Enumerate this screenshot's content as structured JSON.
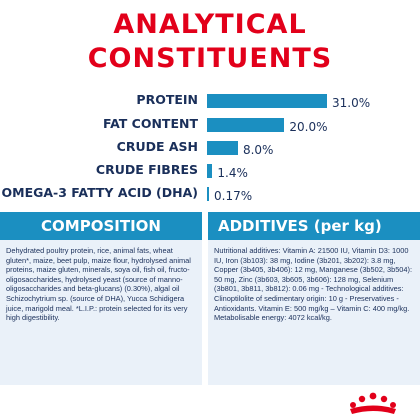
{
  "title": {
    "line1": "ANALYTICAL",
    "line2": "CONSTITUENTS"
  },
  "chart_data": {
    "type": "bar",
    "orientation": "horizontal",
    "categories": [
      "PROTEIN",
      "FAT CONTENT",
      "CRUDE ASH",
      "CRUDE FIBRES",
      "OMEGA-3 FATTY ACID (DHA)"
    ],
    "values": [
      31.0,
      20.0,
      8.0,
      1.4,
      0.17
    ],
    "value_labels": [
      "31.0%",
      "20.0%",
      "8.0%",
      "1.4%",
      "0.17%"
    ],
    "xlim": [
      0,
      31.0
    ],
    "color": "#1b8fc1"
  },
  "composition": {
    "heading": "COMPOSITION",
    "text": "Dehydrated poultry protein, rice, animal fats, wheat gluten*, maize, beet pulp, maize flour, hydrolysed animal proteins, maize gluten, minerals, soya oil, fish oil, fructo-oligosaccharides, hydrolysed yeast (source of manno-oligosaccharides and beta-glucans) (0.30%), algal oil Schizochytrium sp. (source of DHA), Yucca Schidigera juice, marigold meal. *L.I.P.: protein selected for its very high digestibility."
  },
  "additives": {
    "heading": "ADDITIVES (per kg)",
    "text": "Nutritional additives: Vitamin A: 21500 IU, Vitamin D3: 1000 IU, Iron (3b103): 38 mg, Iodine (3b201, 3b202): 3.8 mg, Copper (3b405, 3b406): 12 mg, Manganese (3b502, 3b504): 50 mg, Zinc (3b603, 3b605, 3b606): 128 mg, Selenium (3b801, 3b811, 3b812): 0.06 mg - Technological additives: Clinoptilolite of sedimentary origin: 10 g - Preservatives - Antioxidants. Vitamin E: 500 mg/kg – Vitamin C: 400 mg/kg. Metabolisable energy: 4072 kcal/kg."
  },
  "colors": {
    "brand_red": "#e2001a",
    "accent_blue": "#1b8fc1",
    "text_navy": "#1a2f5a",
    "panel_bg": "#eaf1f9"
  },
  "logo": {
    "icon": "royal-canin-crown-logo"
  }
}
